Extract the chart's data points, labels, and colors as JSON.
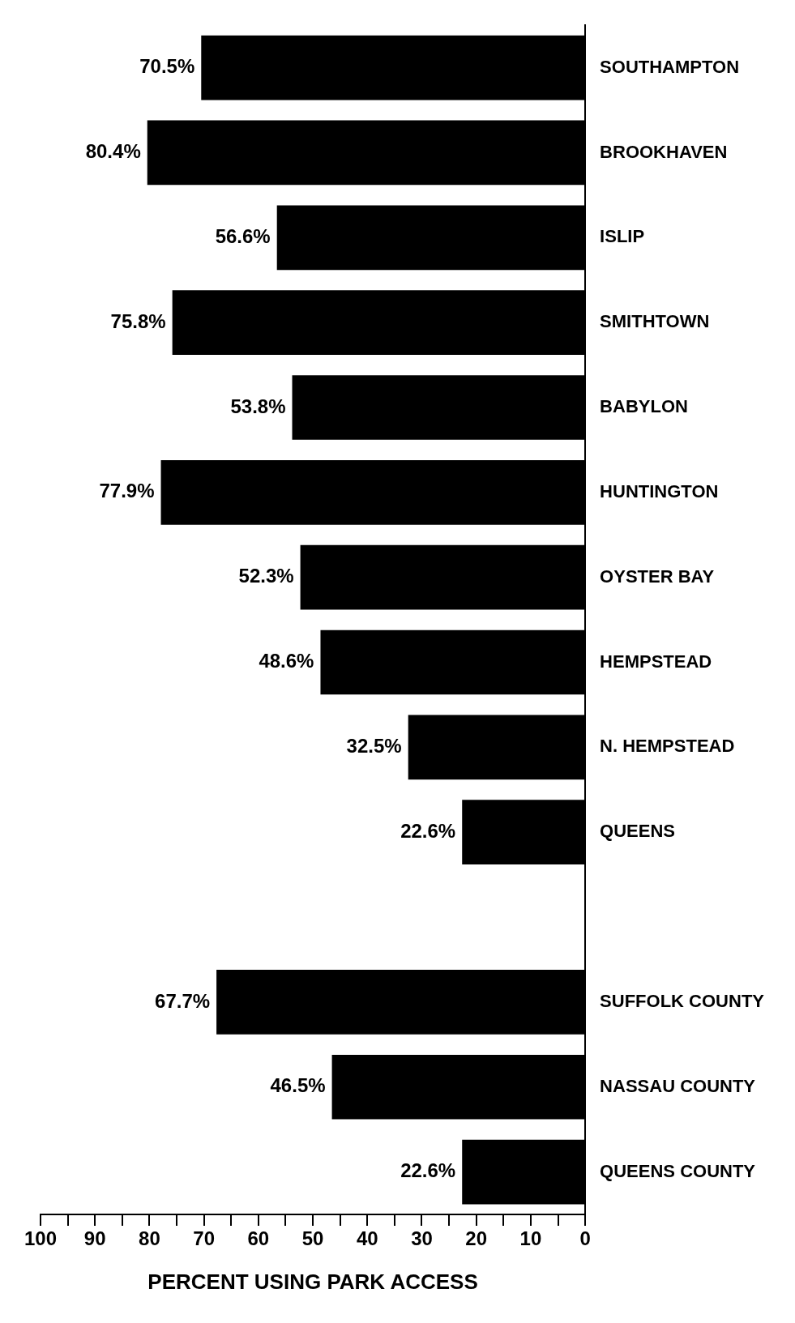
{
  "chart_data": {
    "type": "bar",
    "orientation": "horizontal",
    "xlabel": "PERCENT USING PARK ACCESS",
    "categories": [
      "SOUTHAMPTON",
      "BROOKHAVEN",
      "ISLIP",
      "SMITHTOWN",
      "BABYLON",
      "HUNTINGTON",
      "OYSTER BAY",
      "HEMPSTEAD",
      "N. HEMPSTEAD",
      "QUEENS",
      null,
      "SUFFOLK COUNTY",
      "NASSAU COUNTY",
      "QUEENS COUNTY"
    ],
    "values": [
      70.5,
      80.4,
      56.6,
      75.8,
      53.8,
      77.9,
      52.3,
      48.6,
      32.5,
      22.6,
      null,
      67.7,
      46.5,
      22.6
    ],
    "value_labels": [
      "70.5%",
      "80.4%",
      "56.6%",
      "75.8%",
      "53.8%",
      "77.9%",
      "52.3%",
      "48.6%",
      "32.5%",
      "22.6%",
      null,
      "67.7%",
      "46.5%",
      "22.6%"
    ],
    "color": "#000000",
    "xlim": [
      100,
      0
    ],
    "xticks": [
      100,
      {
        "value": 95,
        "label": null
      },
      90,
      {
        "value": 85,
        "label": null
      },
      80,
      {
        "value": 75,
        "label": null
      },
      70,
      {
        "value": 65,
        "label": null
      },
      60,
      {
        "value": 55,
        "label": null
      },
      50,
      {
        "value": 45,
        "label": null
      },
      40,
      {
        "value": 35,
        "label": null
      },
      30,
      {
        "value": 25,
        "label": null
      },
      20,
      {
        "value": 15,
        "label": null
      },
      10,
      {
        "value": 5,
        "label": null
      },
      0
    ],
    "grid": false,
    "legend": false
  }
}
